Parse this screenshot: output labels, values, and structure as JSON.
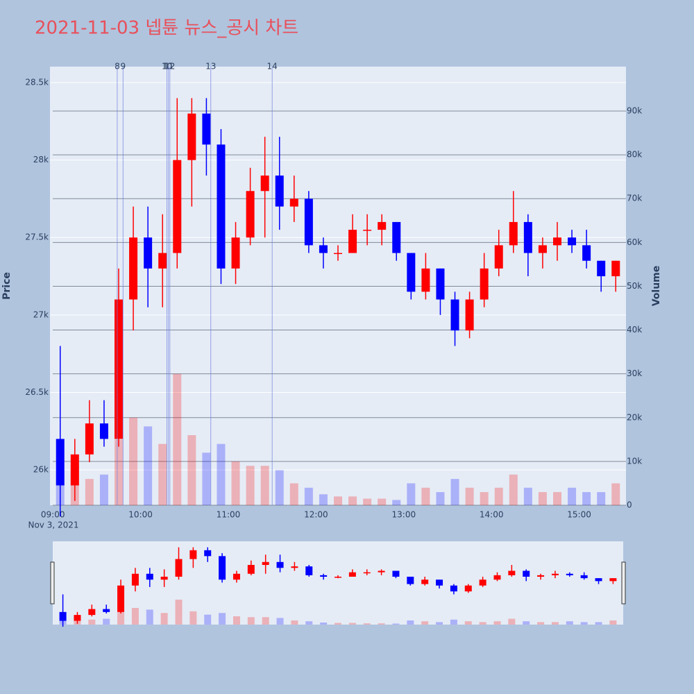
{
  "chart_data": {
    "type": "candlestick",
    "title": "2021-11-03 넵튠 뉴스_공시 차트",
    "x": [
      "09:00",
      "09:10",
      "09:20",
      "09:30",
      "09:40",
      "09:50",
      "10:00",
      "10:10",
      "10:20",
      "10:30",
      "10:40",
      "10:50",
      "11:00",
      "11:10",
      "11:20",
      "11:30",
      "11:40",
      "11:50",
      "12:00",
      "12:10",
      "12:20",
      "12:30",
      "12:40",
      "12:50",
      "13:00",
      "13:10",
      "13:20",
      "13:30",
      "13:40",
      "13:50",
      "14:00",
      "14:10",
      "14:20",
      "14:30",
      "14:40",
      "14:50",
      "15:00",
      "15:10",
      "15:20"
    ],
    "open": [
      26200,
      25900,
      26100,
      26300,
      26200,
      27100,
      27500,
      27300,
      27400,
      28000,
      28300,
      28100,
      27300,
      27500,
      27800,
      27900,
      27700,
      27750,
      27450,
      27400,
      27400,
      27550,
      27550,
      27600,
      27400,
      27150,
      27300,
      27100,
      26900,
      27100,
      27300,
      27450,
      27600,
      27400,
      27450,
      27500,
      27450,
      27350,
      27250
    ],
    "high": [
      26800,
      26200,
      26450,
      26450,
      27300,
      27700,
      27700,
      27650,
      28400,
      28400,
      28400,
      28200,
      27600,
      27950,
      28150,
      28150,
      27900,
      27800,
      27500,
      27450,
      27650,
      27650,
      27650,
      27600,
      27400,
      27400,
      27300,
      27150,
      27150,
      27400,
      27550,
      27800,
      27650,
      27500,
      27600,
      27550,
      27550,
      27350,
      27350
    ],
    "low": [
      25700,
      25800,
      26050,
      26150,
      26150,
      26900,
      27050,
      27050,
      27300,
      27700,
      27900,
      27200,
      27200,
      27450,
      27500,
      27550,
      27600,
      27400,
      27300,
      27350,
      27400,
      27450,
      27450,
      27350,
      27100,
      27100,
      27000,
      26800,
      26850,
      27050,
      27250,
      27400,
      27250,
      27300,
      27350,
      27400,
      27300,
      27150,
      27150
    ],
    "close": [
      25900,
      26100,
      26300,
      26200,
      27100,
      27500,
      27300,
      27400,
      28000,
      28300,
      28100,
      27300,
      27500,
      27800,
      27900,
      27700,
      27750,
      27450,
      27400,
      27400,
      27550,
      27550,
      27600,
      27400,
      27150,
      27300,
      27100,
      26900,
      27100,
      27300,
      27450,
      27600,
      27400,
      27450,
      27500,
      27450,
      27350,
      27250,
      27350
    ],
    "volume": [
      8000,
      9000,
      6000,
      7000,
      15000,
      20000,
      18000,
      14000,
      30000,
      16000,
      12000,
      14000,
      10000,
      9000,
      9000,
      8000,
      5000,
      4000,
      2500,
      2000,
      2000,
      1500,
      1500,
      1200,
      5000,
      4000,
      3000,
      6000,
      4000,
      3000,
      4000,
      7000,
      4000,
      3000,
      3000,
      4000,
      3000,
      3000,
      5000
    ],
    "increasing_color": "#ff0000",
    "decreasing_color": "#0000ff",
    "xlim": [
      "08:58",
      "15:32"
    ],
    "xticks": [
      "09:00",
      "10:00",
      "11:00",
      "12:00",
      "13:00",
      "14:00",
      "15:00"
    ],
    "x_date_label": "Nov 3, 2021",
    "y_label": "Price",
    "y2_label": "Volume",
    "ylim": [
      25772,
      28603
    ],
    "yticks": [
      {
        "value": 26000,
        "label": "26k"
      },
      {
        "value": 26500,
        "label": "26.5k"
      },
      {
        "value": 27000,
        "label": "27k"
      },
      {
        "value": 27500,
        "label": "27.5k"
      },
      {
        "value": 28000,
        "label": "28k"
      },
      {
        "value": 28500,
        "label": "28.5k"
      }
    ],
    "y2lim": [
      0,
      100140
    ],
    "y2ticks": [
      0,
      {
        "value": 10000,
        "label": "10k"
      },
      {
        "value": 20000,
        "label": "20k"
      },
      {
        "value": 30000,
        "label": "30k"
      },
      {
        "value": 40000,
        "label": "40k"
      },
      {
        "value": 50000,
        "label": "50k"
      },
      {
        "value": 60000,
        "label": "60k"
      },
      {
        "value": 70000,
        "label": "70k"
      },
      {
        "value": 80000,
        "label": "80k"
      },
      {
        "value": 90000,
        "label": "90k"
      }
    ],
    "annotations": [
      {
        "x": "09:44",
        "text": "8"
      },
      {
        "x": "09:48",
        "text": "9"
      },
      {
        "x": "10:18",
        "text": "10"
      },
      {
        "x": "10:19",
        "text": "11"
      },
      {
        "x": "10:20",
        "text": "12"
      },
      {
        "x": "10:48",
        "text": "13"
      },
      {
        "x": "11:30",
        "text": "14"
      }
    ]
  }
}
